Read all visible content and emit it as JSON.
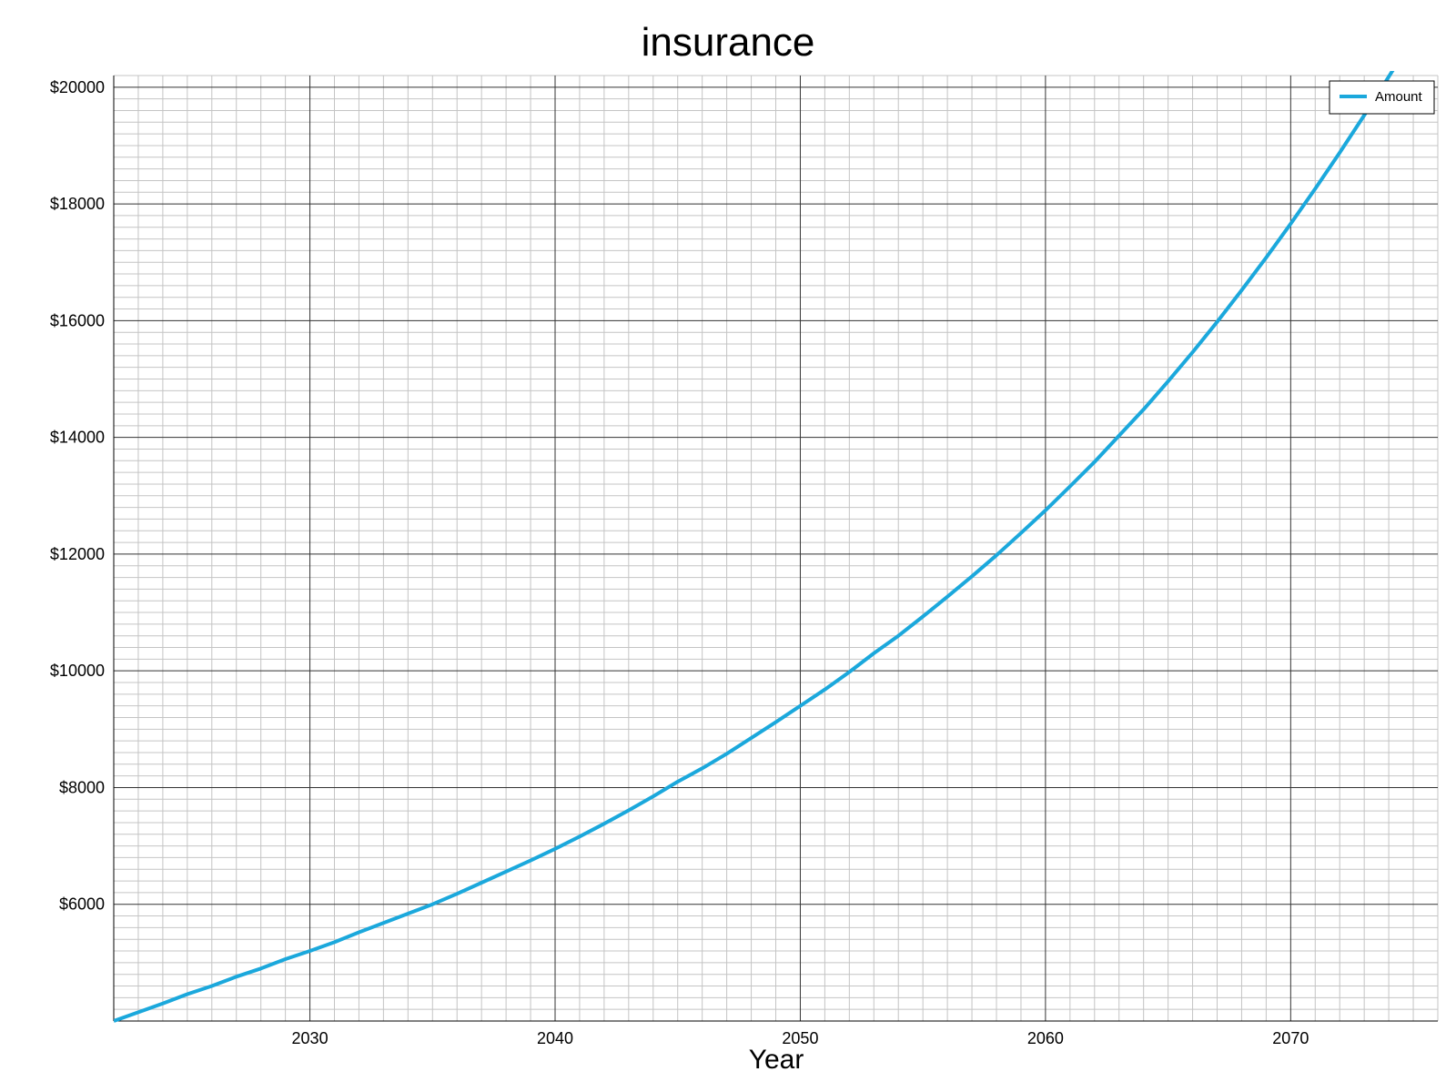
{
  "chart_data": {
    "type": "line",
    "title": "insurance",
    "xlabel": "Year",
    "ylabel": "",
    "xlim": [
      2022,
      2076
    ],
    "ylim": [
      4000,
      20200
    ],
    "x_ticks": [
      2030,
      2040,
      2050,
      2060,
      2070
    ],
    "y_ticks": [
      6000,
      8000,
      10000,
      12000,
      14000,
      16000,
      18000,
      20000
    ],
    "y_tick_prefix": "$",
    "grid": true,
    "minor_grid": true,
    "legend_position": "top-right",
    "series": [
      {
        "name": "Amount",
        "color": "#1ba8dc",
        "x": [
          2022,
          2023,
          2024,
          2025,
          2026,
          2027,
          2028,
          2029,
          2030,
          2031,
          2032,
          2033,
          2034,
          2035,
          2036,
          2037,
          2038,
          2039,
          2040,
          2041,
          2042,
          2043,
          2044,
          2045,
          2046,
          2047,
          2048,
          2049,
          2050,
          2051,
          2052,
          2053,
          2054,
          2055,
          2056,
          2057,
          2058,
          2059,
          2060,
          2061,
          2062,
          2063,
          2064,
          2065,
          2066,
          2067,
          2068,
          2069,
          2070,
          2071,
          2072,
          2073,
          2074,
          2075,
          2076
        ],
        "values": [
          4000,
          4150,
          4300,
          4460,
          4600,
          4760,
          4900,
          5060,
          5200,
          5350,
          5520,
          5680,
          5840,
          6000,
          6180,
          6370,
          6560,
          6750,
          6950,
          7160,
          7380,
          7610,
          7850,
          8100,
          8330,
          8580,
          8850,
          9120,
          9400,
          9680,
          9980,
          10300,
          10600,
          10930,
          11270,
          11620,
          11980,
          12360,
          12750,
          13160,
          13580,
          14030,
          14480,
          14960,
          15460,
          15980,
          16520,
          17080,
          17660,
          18260,
          18880,
          19520,
          20180,
          20850,
          21500
        ]
      }
    ]
  }
}
